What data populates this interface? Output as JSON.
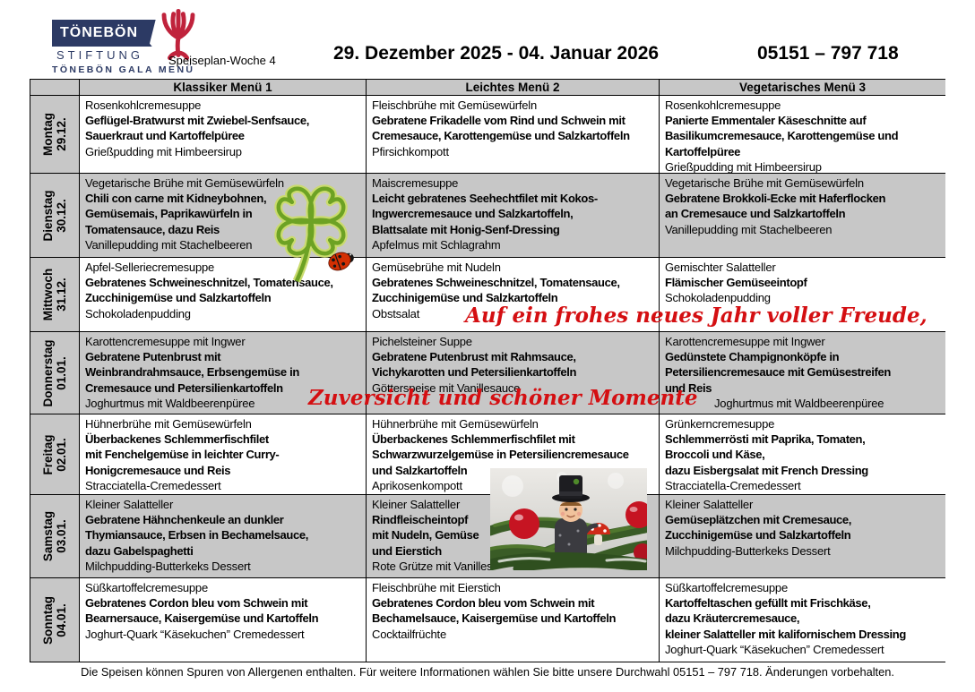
{
  "header": {
    "logo": {
      "line1": "TÖNEBÖN",
      "line2": "STIFTUNG",
      "line3": "TÖNEBÖN GALA MENÜ"
    },
    "week_label": "Speiseplan-Woche 4",
    "date_range": "29. Dezember 2025 - 04. Januar 2026",
    "phone": "05151 – 797 718"
  },
  "columns": [
    "Klassiker Menü 1",
    "Leichtes Menü 2",
    "Vegetarisches Menü 3"
  ],
  "days": [
    {
      "name": "Montag",
      "date": "29.12.",
      "shaded": false,
      "menus": [
        [
          {
            "t": "Rosenkohlcremesuppe",
            "b": false
          },
          {
            "t": "Geflügel-Bratwurst mit Zwiebel-Senfsauce,",
            "b": true
          },
          {
            "t": "Sauerkraut und Kartoffelpüree",
            "b": true
          },
          {
            "t": "Grießpudding mit Himbeersirup",
            "b": false
          }
        ],
        [
          {
            "t": "Fleischbrühe mit Gemüsewürfeln",
            "b": false
          },
          {
            "t": "Gebratene Frikadelle vom Rind und Schwein mit",
            "b": true
          },
          {
            "t": "Cremesauce, Karottengemüse und Salzkartoffeln",
            "b": true
          },
          {
            "t": "Pfirsichkompott",
            "b": false
          }
        ],
        [
          {
            "t": "Rosenkohlcremesuppe",
            "b": false
          },
          {
            "t": "Panierte Emmentaler Käseschnitte auf",
            "b": true
          },
          {
            "t": "Basilikumcremesauce, Karottengemüse und",
            "b": true
          },
          {
            "t": "Kartoffelpüree",
            "b": true
          },
          {
            "t": "Grießpudding mit Himbeersirup",
            "b": false
          }
        ]
      ]
    },
    {
      "name": "Dienstag",
      "date": "30.12.",
      "shaded": true,
      "menus": [
        [
          {
            "t": "Vegetarische Brühe mit Gemüsewürfeln",
            "b": false
          },
          {
            "t": "Chili con carne mit Kidneybohnen,",
            "b": true
          },
          {
            "t": "Gemüsemais, Paprikawürfeln in",
            "b": true
          },
          {
            "t": "Tomatensauce, dazu Reis",
            "b": true
          },
          {
            "t": "Vanillepudding mit Stachelbeeren",
            "b": false
          }
        ],
        [
          {
            "t": "Maiscremesuppe",
            "b": false
          },
          {
            "t": "Leicht gebratenes Seehechtfilet mit Kokos-",
            "b": true
          },
          {
            "t": "Ingwercremesauce und Salzkartoffeln,",
            "b": true
          },
          {
            "t": "Blattsalate mit Honig-Senf-Dressing",
            "b": true
          },
          {
            "t": "Apfelmus mit Schlagrahm",
            "b": false
          }
        ],
        [
          {
            "t": "Vegetarische Brühe mit Gemüsewürfeln",
            "b": false
          },
          {
            "t": "Gebratene Brokkoli-Ecke mit Haferflocken",
            "b": true
          },
          {
            "t": "an Cremesauce und Salzkartoffeln",
            "b": true
          },
          {
            "t": "Vanillepudding mit Stachelbeeren",
            "b": false
          }
        ]
      ]
    },
    {
      "name": "Mittwoch",
      "date": "31.12.",
      "shaded": false,
      "menus": [
        [
          {
            "t": "Apfel-Selleriecremesuppe",
            "b": false
          },
          {
            "t": "Gebratenes Schweineschnitzel, Tomatensauce,",
            "b": true
          },
          {
            "t": "Zucchinigemüse und Salzkartoffeln",
            "b": true
          },
          {
            "t": "Schokoladenpudding",
            "b": false
          }
        ],
        [
          {
            "t": "Gemüsebrühe mit Nudeln",
            "b": false
          },
          {
            "t": "Gebratenes Schweineschnitzel, Tomatensauce,",
            "b": true
          },
          {
            "t": "Zucchinigemüse und Salzkartoffeln",
            "b": true
          },
          {
            "t": "Obstsalat",
            "b": false
          }
        ],
        [
          {
            "t": "Gemischter Salatteller",
            "b": false
          },
          {
            "t": "Flämischer Gemüseeintopf",
            "b": true
          },
          {
            "t": "Schokoladenpudding",
            "b": false
          }
        ]
      ]
    },
    {
      "name": "Donnerstag",
      "date": "01.01.",
      "shaded": true,
      "menus": [
        [
          {
            "t": "Karottencremesuppe mit Ingwer",
            "b": false
          },
          {
            "t": "Gebratene Putenbrust mit",
            "b": true
          },
          {
            "t": "Weinbrandrahmsauce, Erbsengemüse in",
            "b": true
          },
          {
            "t": "Cremesauce und Petersilienkartoffeln",
            "b": true
          },
          {
            "t": "Joghurtmus mit Waldbeerenpüree",
            "b": false
          }
        ],
        [
          {
            "t": "Pichelsteiner Suppe",
            "b": false
          },
          {
            "t": "Gebratene Putenbrust mit Rahmsauce,",
            "b": true
          },
          {
            "t": "Vichykarotten und Petersilienkartoffeln",
            "b": true
          },
          {
            "t": "Götterspeise mit Vanillesauce",
            "b": false
          }
        ],
        [
          {
            "t": "Karottencremesuppe mit Ingwer",
            "b": false
          },
          {
            "t": "Gedünstete Champignonköpfe in",
            "b": true
          },
          {
            "t": "Petersiliencremesauce mit Gemüsestreifen",
            "b": true
          },
          {
            "t": "und Reis",
            "b": true
          },
          {
            "t": "Joghurtmus mit Waldbeerenpüree",
            "b": false,
            "i": true
          }
        ]
      ]
    },
    {
      "name": "Freitag",
      "date": "02.01.",
      "shaded": false,
      "menus": [
        [
          {
            "t": "Hühnerbrühe mit Gemüsewürfeln",
            "b": false
          },
          {
            "t": "Überbackenes Schlemmerfischfilet",
            "b": true
          },
          {
            "t": "mit Fenchelgemüse in leichter Curry-",
            "b": true
          },
          {
            "t": "Honigcremesauce und Reis",
            "b": true
          },
          {
            "t": "Stracciatella-Cremedessert",
            "b": false
          }
        ],
        [
          {
            "t": "Hühnerbrühe mit Gemüsewürfeln",
            "b": false
          },
          {
            "t": "Überbackenes Schlemmerfischfilet mit",
            "b": true
          },
          {
            "t": "Schwarzwurzelgemüse in Petersiliencremesauce",
            "b": true
          },
          {
            "t": "und Salzkartoffeln",
            "b": true
          },
          {
            "t": "Aprikosenkompott",
            "b": false
          }
        ],
        [
          {
            "t": "Grünkerncremesuppe",
            "b": false
          },
          {
            "t": "Schlemmerrösti mit Paprika, Tomaten,",
            "b": true
          },
          {
            "t": "Broccoli und Käse,",
            "b": true
          },
          {
            "t": "dazu Eisbergsalat mit French Dressing",
            "b": true
          },
          {
            "t": "Stracciatella-Cremedessert",
            "b": false
          }
        ]
      ]
    },
    {
      "name": "Samstag",
      "date": "03.01.",
      "shaded": true,
      "menus": [
        [
          {
            "t": "Kleiner Salatteller",
            "b": false
          },
          {
            "t": "Gebratene Hähnchenkeule an dunkler",
            "b": true
          },
          {
            "t": "Thymiansauce, Erbsen in Bechamelsauce,",
            "b": true
          },
          {
            "t": "dazu Gabelspaghetti",
            "b": true
          },
          {
            "t": "Milchpudding-Butterkeks Dessert",
            "b": false
          }
        ],
        [
          {
            "t": "Kleiner Salatteller",
            "b": false
          },
          {
            "t": "Rindfleischeintopf",
            "b": true
          },
          {
            "t": "mit Nudeln, Gemüse",
            "b": true
          },
          {
            "t": "und Eierstich",
            "b": true
          },
          {
            "t": "Rote Grütze mit Vanillesauce",
            "b": false
          }
        ],
        [
          {
            "t": "Kleiner Salatteller",
            "b": false
          },
          {
            "t": "Gemüseplätzchen mit Cremesauce,",
            "b": true
          },
          {
            "t": "Zucchinigemüse und Salzkartoffeln",
            "b": true
          },
          {
            "t": "Milchpudding-Butterkeks Dessert",
            "b": false
          }
        ]
      ]
    },
    {
      "name": "Sonntag",
      "date": "04.01.",
      "shaded": false,
      "menus": [
        [
          {
            "t": "Süßkartoffelcremesuppe",
            "b": false
          },
          {
            "t": "Gebratenes Cordon bleu vom Schwein mit",
            "b": true
          },
          {
            "t": "Bearnersauce, Kaisergemüse und Kartoffeln",
            "b": true
          },
          {
            "t": "Joghurt-Quark “Käsekuchen” Cremedessert",
            "b": false
          }
        ],
        [
          {
            "t": "Fleischbrühe mit Eierstich",
            "b": false
          },
          {
            "t": "Gebratenes Cordon bleu vom Schwein mit",
            "b": true
          },
          {
            "t": "Bechamelsauce, Kaisergemüse und Kartoffeln",
            "b": true
          },
          {
            "t": "Cocktailfrüchte",
            "b": false
          }
        ],
        [
          {
            "t": "Süßkartoffelcremesuppe",
            "b": false
          },
          {
            "t": "Kartoffeltaschen gefüllt mit Frischkäse,",
            "b": true
          },
          {
            "t": "dazu Kräutercremesauce,",
            "b": true
          },
          {
            "t": "kleiner Salatteller mit kalifornischem Dressing",
            "b": true
          },
          {
            "t": "Joghurt-Quark “Käsekuchen” Cremedessert",
            "b": false
          }
        ]
      ]
    }
  ],
  "decorations": {
    "greeting1": "Auf ein frohes neues Jahr voller Freude,",
    "greeting2": "Zuversicht und schöner Momente"
  },
  "footer": {
    "text": "Die Speisen können Spuren von Allergenen enthalten. Für weitere Informationen wählen Sie bitte unsere Durchwahl 05151 – 797 718. Änderungen vorbehalten."
  },
  "colors": {
    "navy": "#2c3a64",
    "brand_red": "#c0233c",
    "script_red": "#d40f12",
    "grey": "#c7c7c7"
  }
}
